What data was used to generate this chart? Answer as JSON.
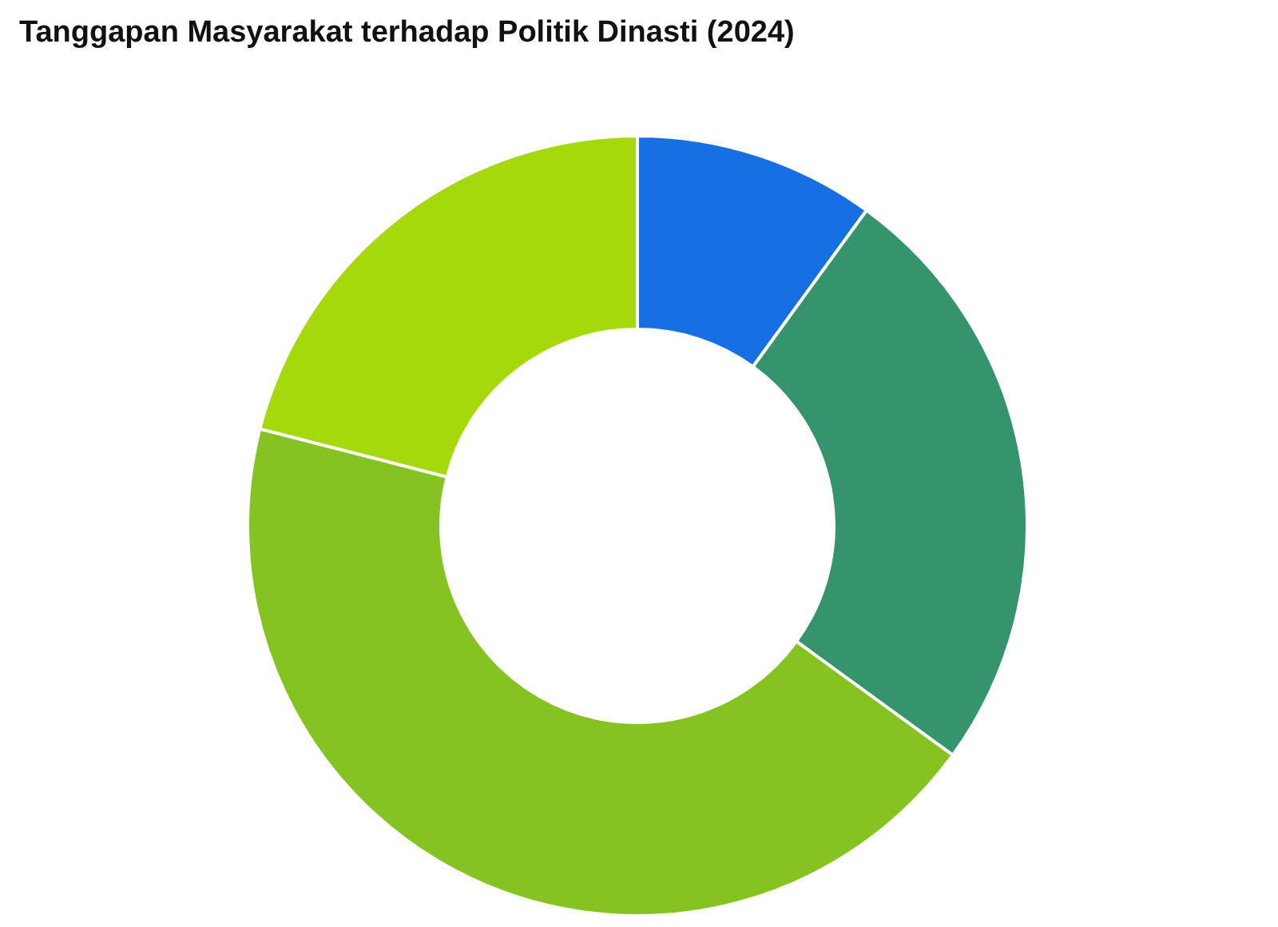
{
  "chart_data": {
    "type": "donut",
    "title": "Tanggapan Masyarakat terhadap Politik Dinasti (2024)",
    "categories": [
      null,
      null,
      null,
      null
    ],
    "values": [
      10,
      25,
      44,
      21
    ],
    "colors": [
      "#1670e3",
      "#35946b",
      "#84c322",
      "#a6d90c"
    ]
  }
}
